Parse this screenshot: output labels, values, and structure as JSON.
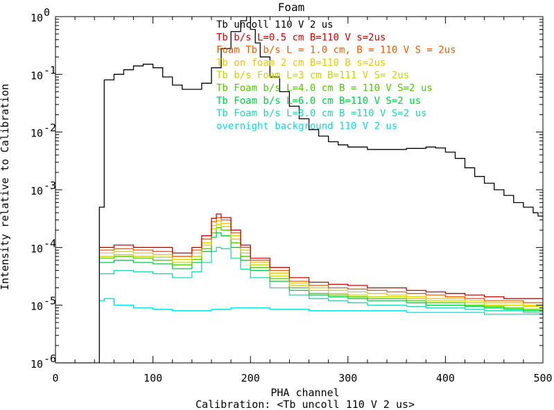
{
  "chart_data": {
    "type": "line",
    "title": "Foam",
    "xlabel": "PHA channel",
    "ylabel": "Intensity relative to Calibration",
    "footnote": "Calibration: <Tb uncoll 110 V 2 us>",
    "xlim": [
      0,
      500
    ],
    "ylim": [
      1e-06,
      1
    ],
    "y_scale": "log",
    "x_ticks": [
      "0",
      "100",
      "200",
      "300",
      "400",
      "500"
    ],
    "y_tick_values": [
      1e-06,
      1e-05,
      0.0001,
      0.001,
      0.01,
      0.1,
      1
    ],
    "y_tick_mantissa": "10",
    "y_tick_exponents": [
      "-6",
      "-5",
      "-4",
      "-3",
      "-2",
      "-1",
      "0"
    ],
    "grid": false,
    "legend_position": "top-center",
    "series": [
      {
        "name": "Tb uncoll 110 V 2 us",
        "color": "#000000",
        "x": [
          0,
          43,
          45,
          50,
          60,
          70,
          80,
          90,
          100,
          110,
          120,
          130,
          140,
          150,
          160,
          170,
          180,
          190,
          196,
          200,
          205,
          210,
          220,
          230,
          240,
          250,
          260,
          270,
          280,
          290,
          300,
          320,
          340,
          360,
          380,
          390,
          400,
          410,
          420,
          430,
          440,
          450,
          460,
          470,
          480,
          490,
          495,
          500
        ],
        "y": [
          1e-06,
          1e-06,
          0.0005,
          0.08,
          0.1,
          0.12,
          0.14,
          0.15,
          0.13,
          0.09,
          0.065,
          0.055,
          0.055,
          0.07,
          0.13,
          0.28,
          0.55,
          0.85,
          1.0,
          0.6,
          0.35,
          0.2,
          0.09,
          0.05,
          0.028,
          0.017,
          0.011,
          0.0085,
          0.0068,
          0.006,
          0.0055,
          0.005,
          0.005,
          0.0052,
          0.0055,
          0.0053,
          0.0045,
          0.0035,
          0.0024,
          0.0017,
          0.0013,
          0.001,
          0.0008,
          0.0006,
          0.0005,
          0.0004,
          0.00035,
          0.00033
        ]
      },
      {
        "name": "Tb b/s L=0.5 cm B=110 V s=2us",
        "color": "#cc0000",
        "x": [
          45,
          60,
          80,
          100,
          120,
          140,
          150,
          160,
          165,
          170,
          180,
          190,
          200,
          220,
          240,
          260,
          280,
          300,
          320,
          340,
          360,
          380,
          400,
          420,
          440,
          460,
          480,
          500
        ],
        "y": [
          0.0001,
          0.00011,
          0.0001,
          0.0001,
          8e-05,
          0.0001,
          0.00016,
          0.00032,
          0.00038,
          0.00033,
          0.0002,
          0.00011,
          6.5e-05,
          4.5e-05,
          3e-05,
          2.5e-05,
          2.3e-05,
          2.2e-05,
          2e-05,
          2e-05,
          1.8e-05,
          1.7e-05,
          1.6e-05,
          1.5e-05,
          1.4e-05,
          1.3e-05,
          1.3e-05,
          1.2e-05
        ]
      },
      {
        "name": "Foam Tb b/s L = 1.0 cm, B = 110 V S = 2us",
        "color": "#ee5a00",
        "x": [
          45,
          60,
          80,
          100,
          120,
          140,
          150,
          160,
          165,
          170,
          180,
          190,
          200,
          220,
          240,
          260,
          280,
          300,
          320,
          340,
          360,
          380,
          400,
          420,
          440,
          460,
          480,
          500
        ],
        "y": [
          9e-05,
          9.5e-05,
          9e-05,
          8.5e-05,
          7e-05,
          9e-05,
          0.00014,
          0.00028,
          0.00033,
          0.0003,
          0.00018,
          0.0001,
          6e-05,
          4e-05,
          2.6e-05,
          2.2e-05,
          2e-05,
          1.9e-05,
          1.8e-05,
          1.7e-05,
          1.6e-05,
          1.5e-05,
          1.4e-05,
          1.3e-05,
          1.2e-05,
          1.2e-05,
          1.1e-05,
          1e-05
        ]
      },
      {
        "name": "Tb on foam 2 cm B=110 B s=2us",
        "color": "#e8c800",
        "x": [
          45,
          60,
          80,
          100,
          120,
          140,
          150,
          160,
          165,
          170,
          180,
          190,
          200,
          220,
          240,
          260,
          280,
          300,
          320,
          340,
          360,
          380,
          400,
          420,
          440,
          460,
          480,
          500
        ],
        "y": [
          8e-05,
          8.5e-05,
          8e-05,
          7.5e-05,
          6.2e-05,
          8e-05,
          0.00012,
          0.00024,
          0.00029,
          0.00026,
          0.00016,
          9e-05,
          5.5e-05,
          3.6e-05,
          2.4e-05,
          2e-05,
          1.8e-05,
          1.7e-05,
          1.6e-05,
          1.5e-05,
          1.4e-05,
          1.3e-05,
          1.3e-05,
          1.2e-05,
          1.1e-05,
          1.1e-05,
          1e-05,
          1e-05
        ]
      },
      {
        "name": "Tb b/s Foam L=3 cm B=111 V S= 2us",
        "color": "#c8d400",
        "x": [
          45,
          60,
          80,
          100,
          120,
          140,
          150,
          160,
          165,
          170,
          180,
          190,
          200,
          220,
          240,
          260,
          280,
          300,
          320,
          340,
          360,
          380,
          400,
          420,
          440,
          460,
          480,
          500
        ],
        "y": [
          7e-05,
          7.5e-05,
          7e-05,
          6.8e-05,
          5.5e-05,
          7e-05,
          0.00011,
          0.00021,
          0.00025,
          0.00023,
          0.00014,
          8e-05,
          5e-05,
          3.2e-05,
          2.2e-05,
          1.8e-05,
          1.6e-05,
          1.5e-05,
          1.4e-05,
          1.4e-05,
          1.3e-05,
          1.2e-05,
          1.2e-05,
          1.1e-05,
          1e-05,
          1e-05,
          9.5e-06,
          9e-06
        ]
      },
      {
        "name": "Tb Foam b/s L=4.0 cm B = 110 V S=2 us",
        "color": "#50c800",
        "x": [
          45,
          60,
          80,
          100,
          120,
          140,
          150,
          160,
          165,
          170,
          180,
          190,
          200,
          220,
          240,
          260,
          280,
          300,
          320,
          340,
          360,
          380,
          400,
          420,
          440,
          460,
          480,
          500
        ],
        "y": [
          6.5e-05,
          7e-05,
          6.5e-05,
          6e-05,
          5e-05,
          6.2e-05,
          9.5e-05,
          0.00018,
          0.00022,
          0.0002,
          0.00012,
          7e-05,
          4.5e-05,
          2.9e-05,
          2e-05,
          1.6e-05,
          1.5e-05,
          1.4e-05,
          1.3e-05,
          1.3e-05,
          1.2e-05,
          1.1e-05,
          1.1e-05,
          1e-05,
          9.5e-06,
          9e-06,
          8.5e-06,
          8e-06
        ]
      },
      {
        "name": "Tb Foam b/s L=6.0 cm B=110 V S=2 us",
        "color": "#00cc44",
        "x": [
          45,
          60,
          80,
          100,
          120,
          140,
          150,
          160,
          165,
          170,
          180,
          190,
          200,
          220,
          240,
          260,
          280,
          300,
          320,
          340,
          360,
          380,
          400,
          420,
          440,
          460,
          480,
          500
        ],
        "y": [
          5.5e-05,
          6e-05,
          5.5e-05,
          5.2e-05,
          4.3e-05,
          5.5e-05,
          8.5e-05,
          0.00015,
          0.00018,
          0.00016,
          0.0001,
          6e-05,
          4e-05,
          2.6e-05,
          1.8e-05,
          1.5e-05,
          1.4e-05,
          1.3e-05,
          1.2e-05,
          1.2e-05,
          1.1e-05,
          1e-05,
          1e-05,
          9.5e-06,
          9e-06,
          8.5e-06,
          8e-06,
          7.5e-06
        ]
      },
      {
        "name": "Tb Foam b/s L=8.0 cm B =110 V S=2 us",
        "color": "#22d4b4",
        "x": [
          45,
          60,
          80,
          100,
          120,
          140,
          150,
          160,
          165,
          170,
          180,
          190,
          200,
          220,
          240,
          260,
          280,
          300,
          320,
          340,
          360,
          380,
          400,
          420,
          440,
          460,
          480,
          500
        ],
        "y": [
          3.5e-05,
          4e-05,
          3.8e-05,
          3.5e-05,
          3e-05,
          3.8e-05,
          5.5e-05,
          8.5e-05,
          0.0001,
          9.5e-05,
          6.5e-05,
          4.2e-05,
          3e-05,
          2e-05,
          1.5e-05,
          1.3e-05,
          1.2e-05,
          1.1e-05,
          1e-05,
          1e-05,
          9.5e-06,
          9e-06,
          9e-06,
          8.5e-06,
          8e-06,
          8e-06,
          7.5e-06,
          7e-06
        ]
      },
      {
        "name": "overnight background 110 V 2 us",
        "color": "#00dddd",
        "x": [
          45,
          50,
          60,
          80,
          100,
          120,
          140,
          160,
          180,
          200,
          220,
          240,
          260,
          280,
          300,
          320,
          340,
          360,
          380,
          400,
          420,
          440,
          460,
          480,
          500
        ],
        "y": [
          1.2e-05,
          1.3e-05,
          1e-05,
          9e-06,
          8.5e-06,
          8e-06,
          8e-06,
          8.5e-06,
          9e-06,
          9e-06,
          8.5e-06,
          8.5e-06,
          8e-06,
          8e-06,
          8e-06,
          8e-06,
          8e-06,
          7.5e-06,
          7.5e-06,
          7.5e-06,
          7.5e-06,
          7e-06,
          7e-06,
          7e-06,
          7e-06
        ]
      }
    ]
  }
}
